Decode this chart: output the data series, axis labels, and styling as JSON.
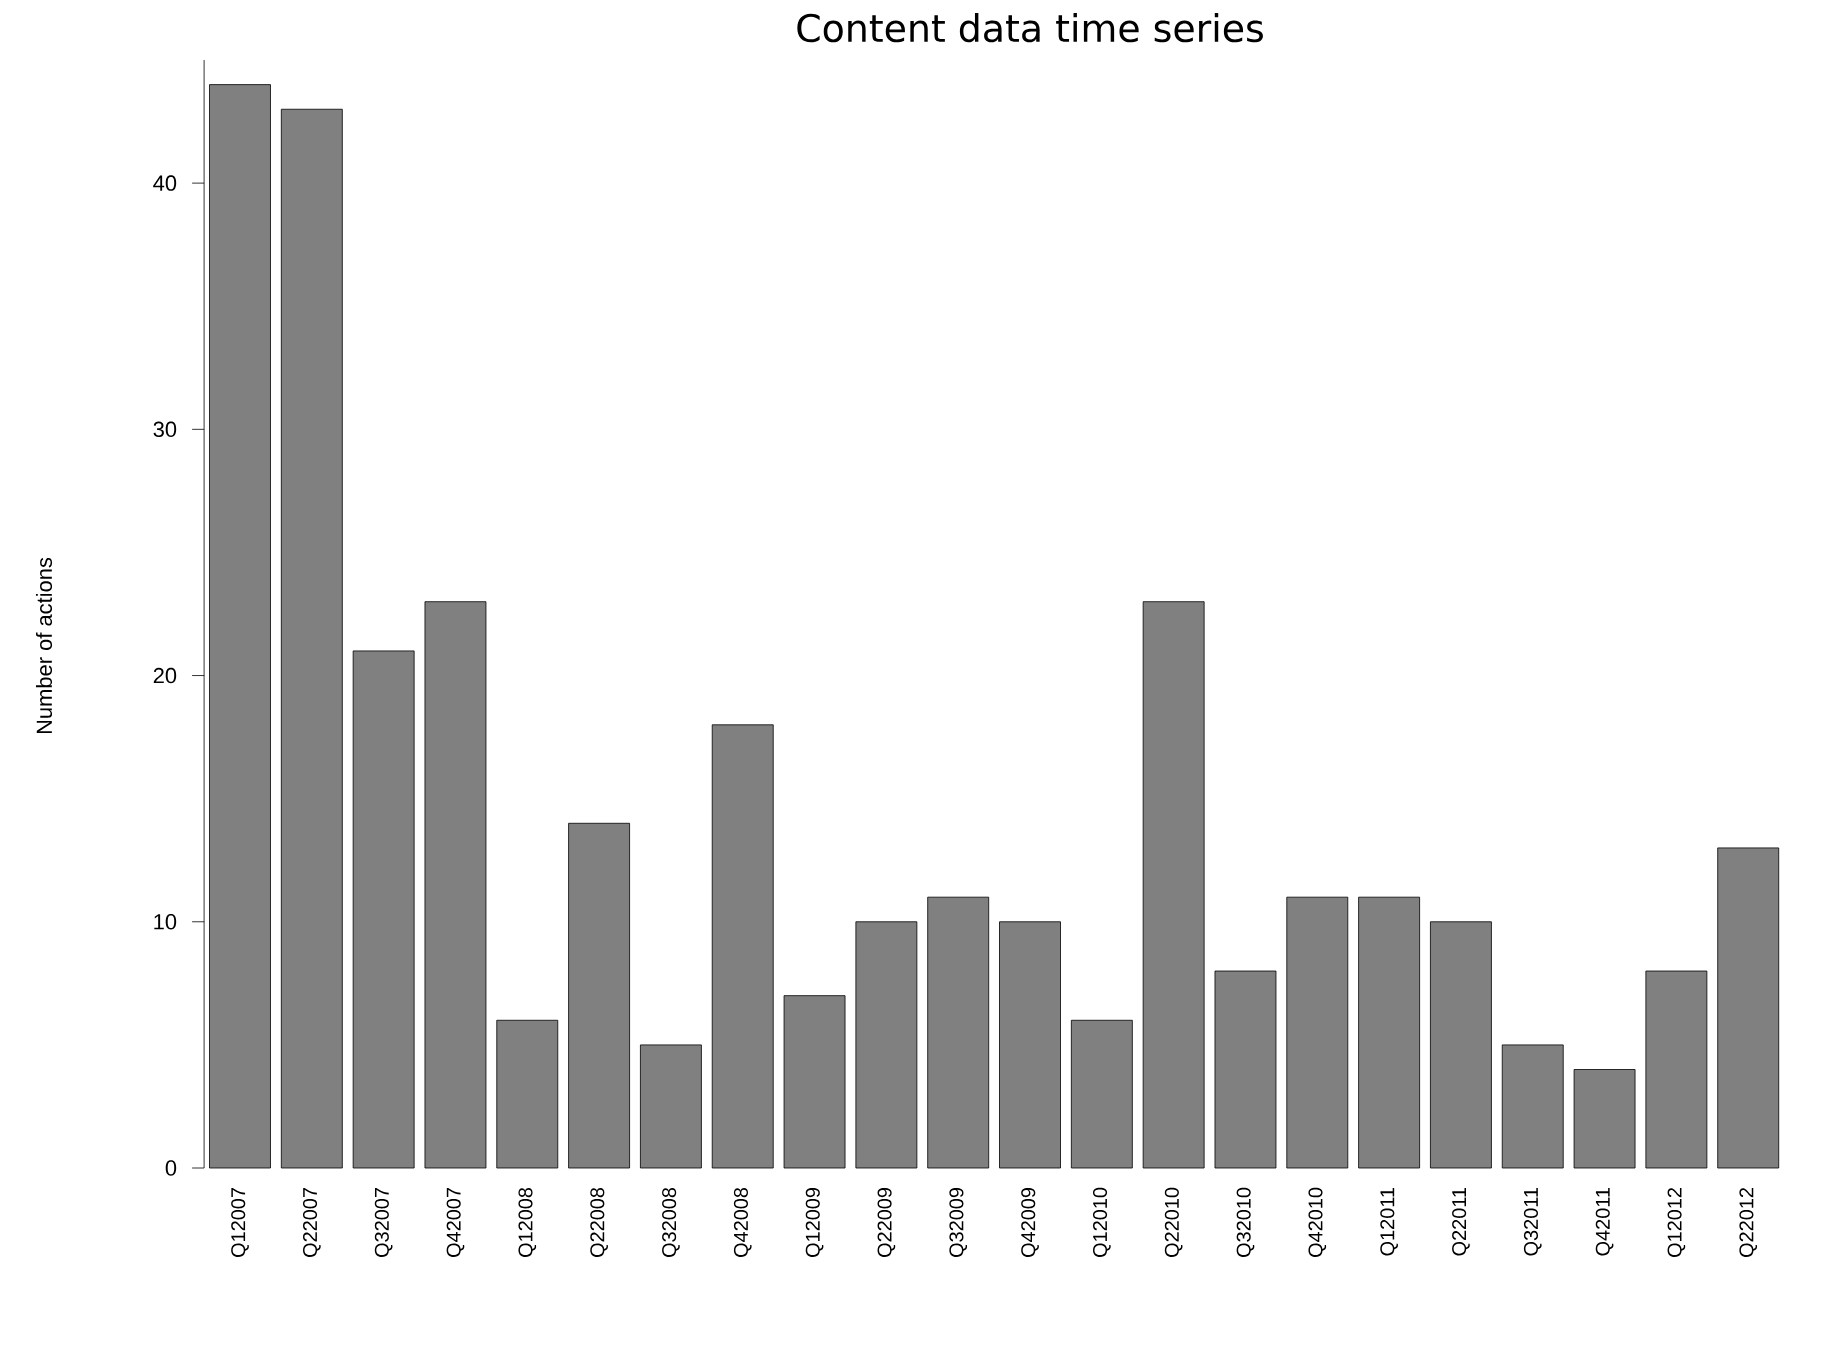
{
  "chart_data": {
    "type": "bar",
    "title": "Content data time series",
    "ylabel": "Number of actions",
    "categories": [
      "Q12007",
      "Q22007",
      "Q32007",
      "Q42007",
      "Q12008",
      "Q22008",
      "Q32008",
      "Q42008",
      "Q12009",
      "Q22009",
      "Q32009",
      "Q42009",
      "Q12010",
      "Q22010",
      "Q32010",
      "Q42010",
      "Q12011",
      "Q22011",
      "Q32011",
      "Q42011",
      "Q12012",
      "Q22012"
    ],
    "values": [
      44,
      43,
      21,
      23,
      6,
      14,
      5,
      18,
      7,
      10,
      11,
      10,
      6,
      23,
      8,
      11,
      11,
      10,
      5,
      4,
      8,
      13
    ],
    "color": "#808080",
    "ylim": [
      0,
      45
    ],
    "yticks": [
      0,
      10,
      20,
      30,
      40
    ]
  }
}
